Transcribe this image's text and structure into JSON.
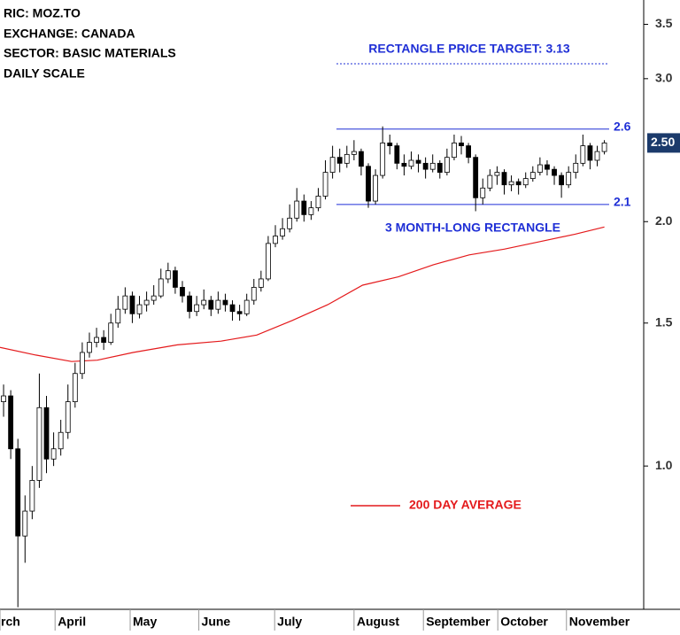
{
  "chart_data": {
    "type": "candlestick",
    "notes": [
      "RIC: MOZ.TO",
      "EXCHANGE: CANADA",
      "SECTOR: BASIC MATERIALS",
      "DAILY SCALE"
    ],
    "log_scale": true,
    "ylim": [
      0.666,
      3.75
    ],
    "yticks": [
      {
        "value": 1,
        "label": "1.0"
      },
      1.5,
      {
        "value": 2,
        "label": "2.0"
      },
      {
        "value": 3,
        "label": "3.0"
      },
      3.5
    ],
    "xlim": [
      0,
      90
    ],
    "xticks": [
      {
        "value": 0,
        "label": "rch"
      },
      {
        "value": 7.7,
        "label": "April"
      },
      {
        "value": 18.2,
        "label": "May"
      },
      {
        "value": 27.8,
        "label": "June"
      },
      {
        "value": 38.4,
        "label": "July"
      },
      {
        "value": 49.5,
        "label": "August"
      },
      {
        "value": 59.2,
        "label": "September"
      },
      {
        "value": 69.6,
        "label": "October"
      },
      {
        "value": 79.2,
        "label": "November"
      }
    ],
    "ohlc": [
      [
        1.2,
        1.26,
        1.15,
        1.22
      ],
      [
        1.22,
        1.24,
        1.02,
        1.05
      ],
      [
        1.05,
        1.08,
        0.67,
        0.82
      ],
      [
        0.82,
        0.92,
        0.76,
        0.88
      ],
      [
        0.88,
        1.0,
        0.86,
        0.96
      ],
      [
        0.96,
        1.3,
        0.94,
        1.18
      ],
      [
        1.18,
        1.22,
        0.98,
        1.02
      ],
      [
        1.02,
        1.1,
        1.0,
        1.05
      ],
      [
        1.05,
        1.14,
        1.03,
        1.1
      ],
      [
        1.1,
        1.26,
        1.08,
        1.2
      ],
      [
        1.2,
        1.34,
        1.18,
        1.3
      ],
      [
        1.3,
        1.42,
        1.28,
        1.38
      ],
      [
        1.38,
        1.46,
        1.36,
        1.42
      ],
      [
        1.42,
        1.48,
        1.4,
        1.44
      ],
      [
        1.44,
        1.47,
        1.39,
        1.42
      ],
      [
        1.42,
        1.54,
        1.41,
        1.5
      ],
      [
        1.5,
        1.62,
        1.48,
        1.56
      ],
      [
        1.56,
        1.66,
        1.54,
        1.62
      ],
      [
        1.62,
        1.64,
        1.5,
        1.54
      ],
      [
        1.54,
        1.62,
        1.52,
        1.58
      ],
      [
        1.58,
        1.64,
        1.55,
        1.6
      ],
      [
        1.6,
        1.67,
        1.58,
        1.62
      ],
      [
        1.62,
        1.75,
        1.61,
        1.7
      ],
      [
        1.7,
        1.78,
        1.68,
        1.74
      ],
      [
        1.74,
        1.76,
        1.63,
        1.66
      ],
      [
        1.66,
        1.69,
        1.59,
        1.62
      ],
      [
        1.62,
        1.64,
        1.52,
        1.55
      ],
      [
        1.55,
        1.62,
        1.53,
        1.58
      ],
      [
        1.58,
        1.65,
        1.56,
        1.6
      ],
      [
        1.6,
        1.62,
        1.53,
        1.56
      ],
      [
        1.56,
        1.64,
        1.54,
        1.6
      ],
      [
        1.6,
        1.63,
        1.55,
        1.58
      ],
      [
        1.58,
        1.6,
        1.51,
        1.55
      ],
      [
        1.55,
        1.58,
        1.51,
        1.54
      ],
      [
        1.54,
        1.63,
        1.53,
        1.6
      ],
      [
        1.6,
        1.7,
        1.58,
        1.66
      ],
      [
        1.66,
        1.74,
        1.64,
        1.7
      ],
      [
        1.7,
        1.92,
        1.69,
        1.88
      ],
      [
        1.88,
        1.98,
        1.86,
        1.92
      ],
      [
        1.92,
        2.02,
        1.9,
        1.96
      ],
      [
        1.96,
        2.1,
        1.94,
        2.02
      ],
      [
        2.02,
        2.2,
        2.0,
        2.12
      ],
      [
        2.12,
        2.16,
        2.0,
        2.04
      ],
      [
        2.04,
        2.12,
        2.01,
        2.08
      ],
      [
        2.08,
        2.2,
        2.06,
        2.15
      ],
      [
        2.15,
        2.38,
        2.13,
        2.3
      ],
      [
        2.3,
        2.48,
        2.26,
        2.4
      ],
      [
        2.4,
        2.46,
        2.3,
        2.36
      ],
      [
        2.36,
        2.48,
        2.33,
        2.42
      ],
      [
        2.42,
        2.52,
        2.38,
        2.44
      ],
      [
        2.44,
        2.46,
        2.28,
        2.34
      ],
      [
        2.34,
        2.36,
        2.08,
        2.12
      ],
      [
        2.12,
        2.32,
        2.1,
        2.28
      ],
      [
        2.28,
        2.62,
        2.26,
        2.5
      ],
      [
        2.5,
        2.56,
        2.42,
        2.48
      ],
      [
        2.48,
        2.5,
        2.32,
        2.36
      ],
      [
        2.36,
        2.42,
        2.28,
        2.34
      ],
      [
        2.34,
        2.44,
        2.32,
        2.38
      ],
      [
        2.38,
        2.42,
        2.3,
        2.36
      ],
      [
        2.36,
        2.4,
        2.26,
        2.32
      ],
      [
        2.32,
        2.42,
        2.3,
        2.36
      ],
      [
        2.36,
        2.38,
        2.26,
        2.3
      ],
      [
        2.3,
        2.46,
        2.28,
        2.4
      ],
      [
        2.4,
        2.56,
        2.38,
        2.5
      ],
      [
        2.5,
        2.55,
        2.42,
        2.48
      ],
      [
        2.48,
        2.5,
        2.36,
        2.4
      ],
      [
        2.4,
        2.42,
        2.06,
        2.14
      ],
      [
        2.14,
        2.26,
        2.1,
        2.2
      ],
      [
        2.2,
        2.32,
        2.18,
        2.28
      ],
      [
        2.28,
        2.34,
        2.22,
        2.3
      ],
      [
        2.3,
        2.32,
        2.16,
        2.22
      ],
      [
        2.22,
        2.28,
        2.18,
        2.24
      ],
      [
        2.24,
        2.26,
        2.16,
        2.22
      ],
      [
        2.22,
        2.3,
        2.2,
        2.26
      ],
      [
        2.26,
        2.34,
        2.24,
        2.3
      ],
      [
        2.3,
        2.4,
        2.28,
        2.35
      ],
      [
        2.35,
        2.38,
        2.28,
        2.32
      ],
      [
        2.32,
        2.34,
        2.22,
        2.28
      ],
      [
        2.28,
        2.3,
        2.14,
        2.22
      ],
      [
        2.22,
        2.34,
        2.2,
        2.3
      ],
      [
        2.3,
        2.42,
        2.26,
        2.36
      ],
      [
        2.36,
        2.56,
        2.34,
        2.48
      ],
      [
        2.48,
        2.5,
        2.32,
        2.38
      ],
      [
        2.38,
        2.48,
        2.34,
        2.44
      ],
      [
        2.44,
        2.52,
        2.42,
        2.5
      ]
    ],
    "up_color": "#ffffff",
    "down_color": "#000000",
    "moving_average": {
      "name": "200 DAY AVERAGE",
      "color": "#e41a1c",
      "x": [
        0,
        5,
        10,
        13.6,
        18.6,
        24.8,
        30.9,
        35.9,
        40.8,
        45.8,
        50.7,
        55.7,
        60.6,
        65.6,
        70.5,
        75.5,
        80.4,
        84.5
      ],
      "values": [
        1.4,
        1.37,
        1.345,
        1.35,
        1.38,
        1.41,
        1.425,
        1.45,
        1.51,
        1.58,
        1.67,
        1.71,
        1.77,
        1.82,
        1.85,
        1.89,
        1.93,
        1.97
      ]
    },
    "levels": [
      2.6,
      2.1
    ],
    "level_color": "#1f2fd6",
    "target": {
      "value": 3.13,
      "label": "RECTANGLE PRICE TARGET: 3.13"
    },
    "pattern_label": "3 MONTH-LONG RECTANGLE",
    "last_price": {
      "value": 2.5,
      "label": "2.50"
    }
  }
}
